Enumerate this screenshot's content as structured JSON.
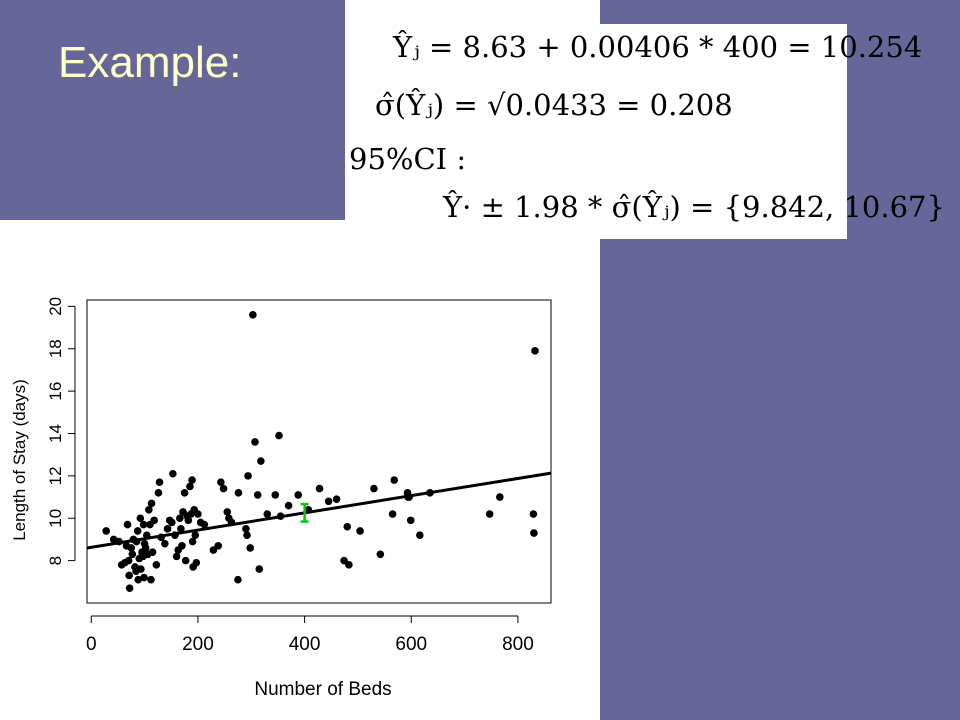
{
  "slide": {
    "title": "Example:",
    "formulas": [
      "Ŷⱼ = 8.63 + 0.00406 * 400 = 10.254",
      "σ̂(Ŷⱼ) = √0.0433 = 0.208",
      "95%CI :",
      "Ŷ· ± 1.98 * σ̂(Ŷⱼ) = {9.842, 10.67}"
    ]
  },
  "colors": {
    "background": "#666699",
    "title": "#ffffcc",
    "interval": "#00cc00"
  },
  "chart_data": {
    "type": "scatter",
    "title": "",
    "xlabel": "Number of Beds",
    "ylabel": "Length of Stay (days)",
    "xlim": [
      -8,
      862
    ],
    "ylim": [
      6,
      20.3
    ],
    "xticks": [
      0,
      200,
      400,
      600,
      800
    ],
    "yticks": [
      8,
      10,
      12,
      14,
      16,
      18,
      20
    ],
    "grid": false,
    "points": [
      [
        28,
        9.4
      ],
      [
        42,
        9.0
      ],
      [
        52,
        8.9
      ],
      [
        57,
        7.8
      ],
      [
        63,
        7.9
      ],
      [
        66,
        8.7
      ],
      [
        68,
        9.7
      ],
      [
        70,
        8.0
      ],
      [
        71,
        7.3
      ],
      [
        72,
        6.7
      ],
      [
        75,
        8.6
      ],
      [
        77,
        8.3
      ],
      [
        79,
        9.0
      ],
      [
        82,
        7.7
      ],
      [
        84,
        7.5
      ],
      [
        85,
        8.9
      ],
      [
        87,
        9.4
      ],
      [
        88,
        7.1
      ],
      [
        90,
        8.1
      ],
      [
        92,
        10.0
      ],
      [
        93,
        7.6
      ],
      [
        95,
        8.4
      ],
      [
        97,
        8.2
      ],
      [
        98,
        9.7
      ],
      [
        99,
        7.2
      ],
      [
        100,
        8.8
      ],
      [
        102,
        8.6
      ],
      [
        104,
        9.2
      ],
      [
        106,
        8.3
      ],
      [
        108,
        10.4
      ],
      [
        110,
        9.7
      ],
      [
        112,
        7.1
      ],
      [
        113,
        10.7
      ],
      [
        115,
        8.4
      ],
      [
        118,
        9.9
      ],
      [
        122,
        7.8
      ],
      [
        126,
        11.2
      ],
      [
        128,
        11.7
      ],
      [
        131,
        9.1
      ],
      [
        138,
        8.8
      ],
      [
        143,
        9.5
      ],
      [
        147,
        9.9
      ],
      [
        151,
        9.8
      ],
      [
        153,
        12.1
      ],
      [
        157,
        9.2
      ],
      [
        160,
        8.2
      ],
      [
        163,
        8.5
      ],
      [
        166,
        10.0
      ],
      [
        168,
        9.5
      ],
      [
        170,
        8.7
      ],
      [
        172,
        10.3
      ],
      [
        175,
        11.2
      ],
      [
        177,
        8.0
      ],
      [
        180,
        10.1
      ],
      [
        182,
        9.9
      ],
      [
        185,
        11.5
      ],
      [
        187,
        10.2
      ],
      [
        189,
        11.8
      ],
      [
        190,
        8.9
      ],
      [
        191,
        7.7
      ],
      [
        193,
        10.4
      ],
      [
        195,
        9.2
      ],
      [
        197,
        7.9
      ],
      [
        200,
        10.2
      ],
      [
        205,
        9.8
      ],
      [
        212,
        9.7
      ],
      [
        229,
        8.5
      ],
      [
        238,
        8.7
      ],
      [
        243,
        11.7
      ],
      [
        248,
        11.4
      ],
      [
        255,
        10.3
      ],
      [
        258,
        10.0
      ],
      [
        263,
        9.8
      ],
      [
        275,
        7.1
      ],
      [
        276,
        11.2
      ],
      [
        290,
        9.5
      ],
      [
        292,
        9.2
      ],
      [
        294,
        12.0
      ],
      [
        298,
        8.6
      ],
      [
        303,
        19.6
      ],
      [
        307,
        13.6
      ],
      [
        312,
        11.1
      ],
      [
        315,
        7.6
      ],
      [
        318,
        12.7
      ],
      [
        330,
        10.2
      ],
      [
        345,
        11.1
      ],
      [
        352,
        13.9
      ],
      [
        355,
        10.1
      ],
      [
        370,
        10.6
      ],
      [
        388,
        11.1
      ],
      [
        407,
        10.4
      ],
      [
        428,
        11.4
      ],
      [
        445,
        10.8
      ],
      [
        460,
        10.9
      ],
      [
        474,
        8.0
      ],
      [
        480,
        9.6
      ],
      [
        483,
        7.8
      ],
      [
        504,
        9.4
      ],
      [
        530,
        11.4
      ],
      [
        542,
        8.3
      ],
      [
        565,
        10.2
      ],
      [
        568,
        11.8
      ],
      [
        593,
        11.2
      ],
      [
        594,
        11.0
      ],
      [
        596,
        11.0
      ],
      [
        599,
        9.9
      ],
      [
        616,
        9.2
      ],
      [
        635,
        11.2
      ],
      [
        747,
        10.2
      ],
      [
        766,
        11.0
      ],
      [
        829,
        10.2
      ],
      [
        830,
        9.3
      ],
      [
        832,
        17.9
      ]
    ],
    "regression": {
      "intercept": 8.63,
      "slope": 0.00406,
      "x_range": [
        -8,
        862
      ]
    },
    "interval": {
      "x": 400,
      "lower": 9.842,
      "upper": 10.67,
      "color": "#00cc00"
    }
  }
}
